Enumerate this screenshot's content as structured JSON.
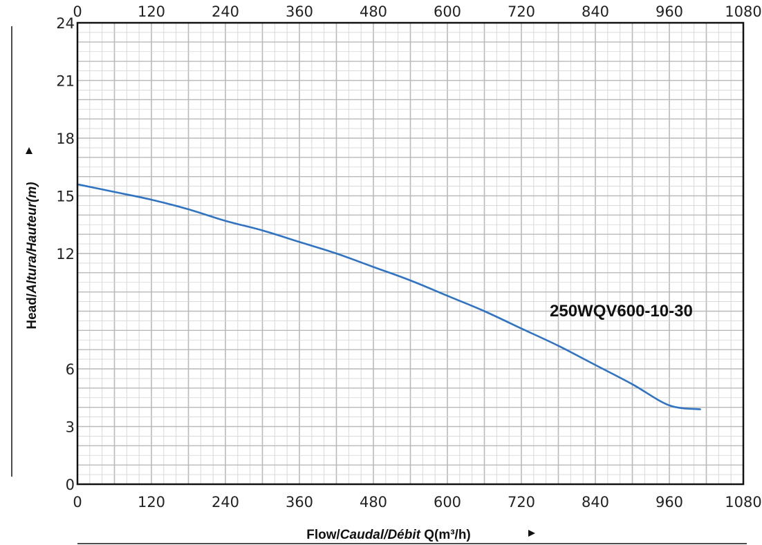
{
  "chart_data": {
    "type": "line",
    "title": "",
    "xlabel_parts": [
      "Flow/",
      "Caudal",
      "/",
      "Débit",
      " Q(m³/h)"
    ],
    "ylabel_parts": [
      "Head/",
      "Altura",
      "/",
      "Hauteur",
      "(m)"
    ],
    "xlim": [
      0,
      1080
    ],
    "ylim": [
      0,
      24
    ],
    "x_ticks": [
      "0",
      "120",
      "240",
      "360",
      "480",
      "600",
      "720",
      "840",
      "960",
      "1080"
    ],
    "x_tick_values": [
      0,
      120,
      240,
      360,
      480,
      600,
      720,
      840,
      960,
      1080
    ],
    "y_ticks": [
      "0",
      "3",
      "6",
      "12",
      "15",
      "18",
      "21",
      "24"
    ],
    "y_tick_values": [
      0,
      3,
      6,
      12,
      15,
      18,
      21,
      24
    ],
    "top_axis_mirrored": true,
    "grid": true,
    "series": [
      {
        "name": "250WQV600-10-30",
        "color": "#2f73c2",
        "x": [
          0,
          60,
          120,
          180,
          240,
          300,
          360,
          420,
          480,
          540,
          600,
          660,
          720,
          780,
          840,
          900,
          960,
          1010
        ],
        "y": [
          15.6,
          15.2,
          14.8,
          14.3,
          13.7,
          13.2,
          12.6,
          12.0,
          11.3,
          10.6,
          9.8,
          9.0,
          8.1,
          7.2,
          6.2,
          5.2,
          4.1,
          3.9
        ]
      }
    ]
  },
  "colors": {
    "grid_major": "#b9b9b9",
    "grid_minor": "#d4d4d4",
    "frame": "#111111"
  }
}
